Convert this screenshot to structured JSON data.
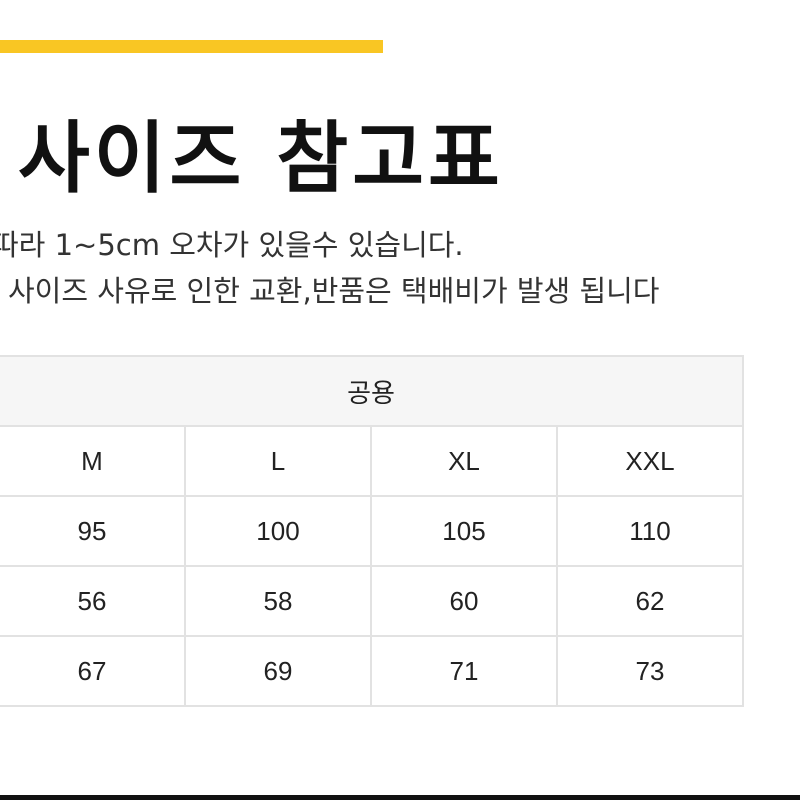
{
  "accent_color": "#f9c623",
  "title": "사이즈 참고표",
  "notes": [
    "따라 1~5cm 오차가 있을수 있습니다.",
    "사이즈 사유로 인한 교환,반품은 택배비가 발생 됩니다"
  ],
  "table": {
    "group_header": "공용",
    "sizes": [
      "M",
      "L",
      "XL",
      "XXL"
    ],
    "rows": [
      [
        "95",
        "100",
        "105",
        "110"
      ],
      [
        "56",
        "58",
        "60",
        "62"
      ],
      [
        "67",
        "69",
        "71",
        "73"
      ]
    ]
  }
}
